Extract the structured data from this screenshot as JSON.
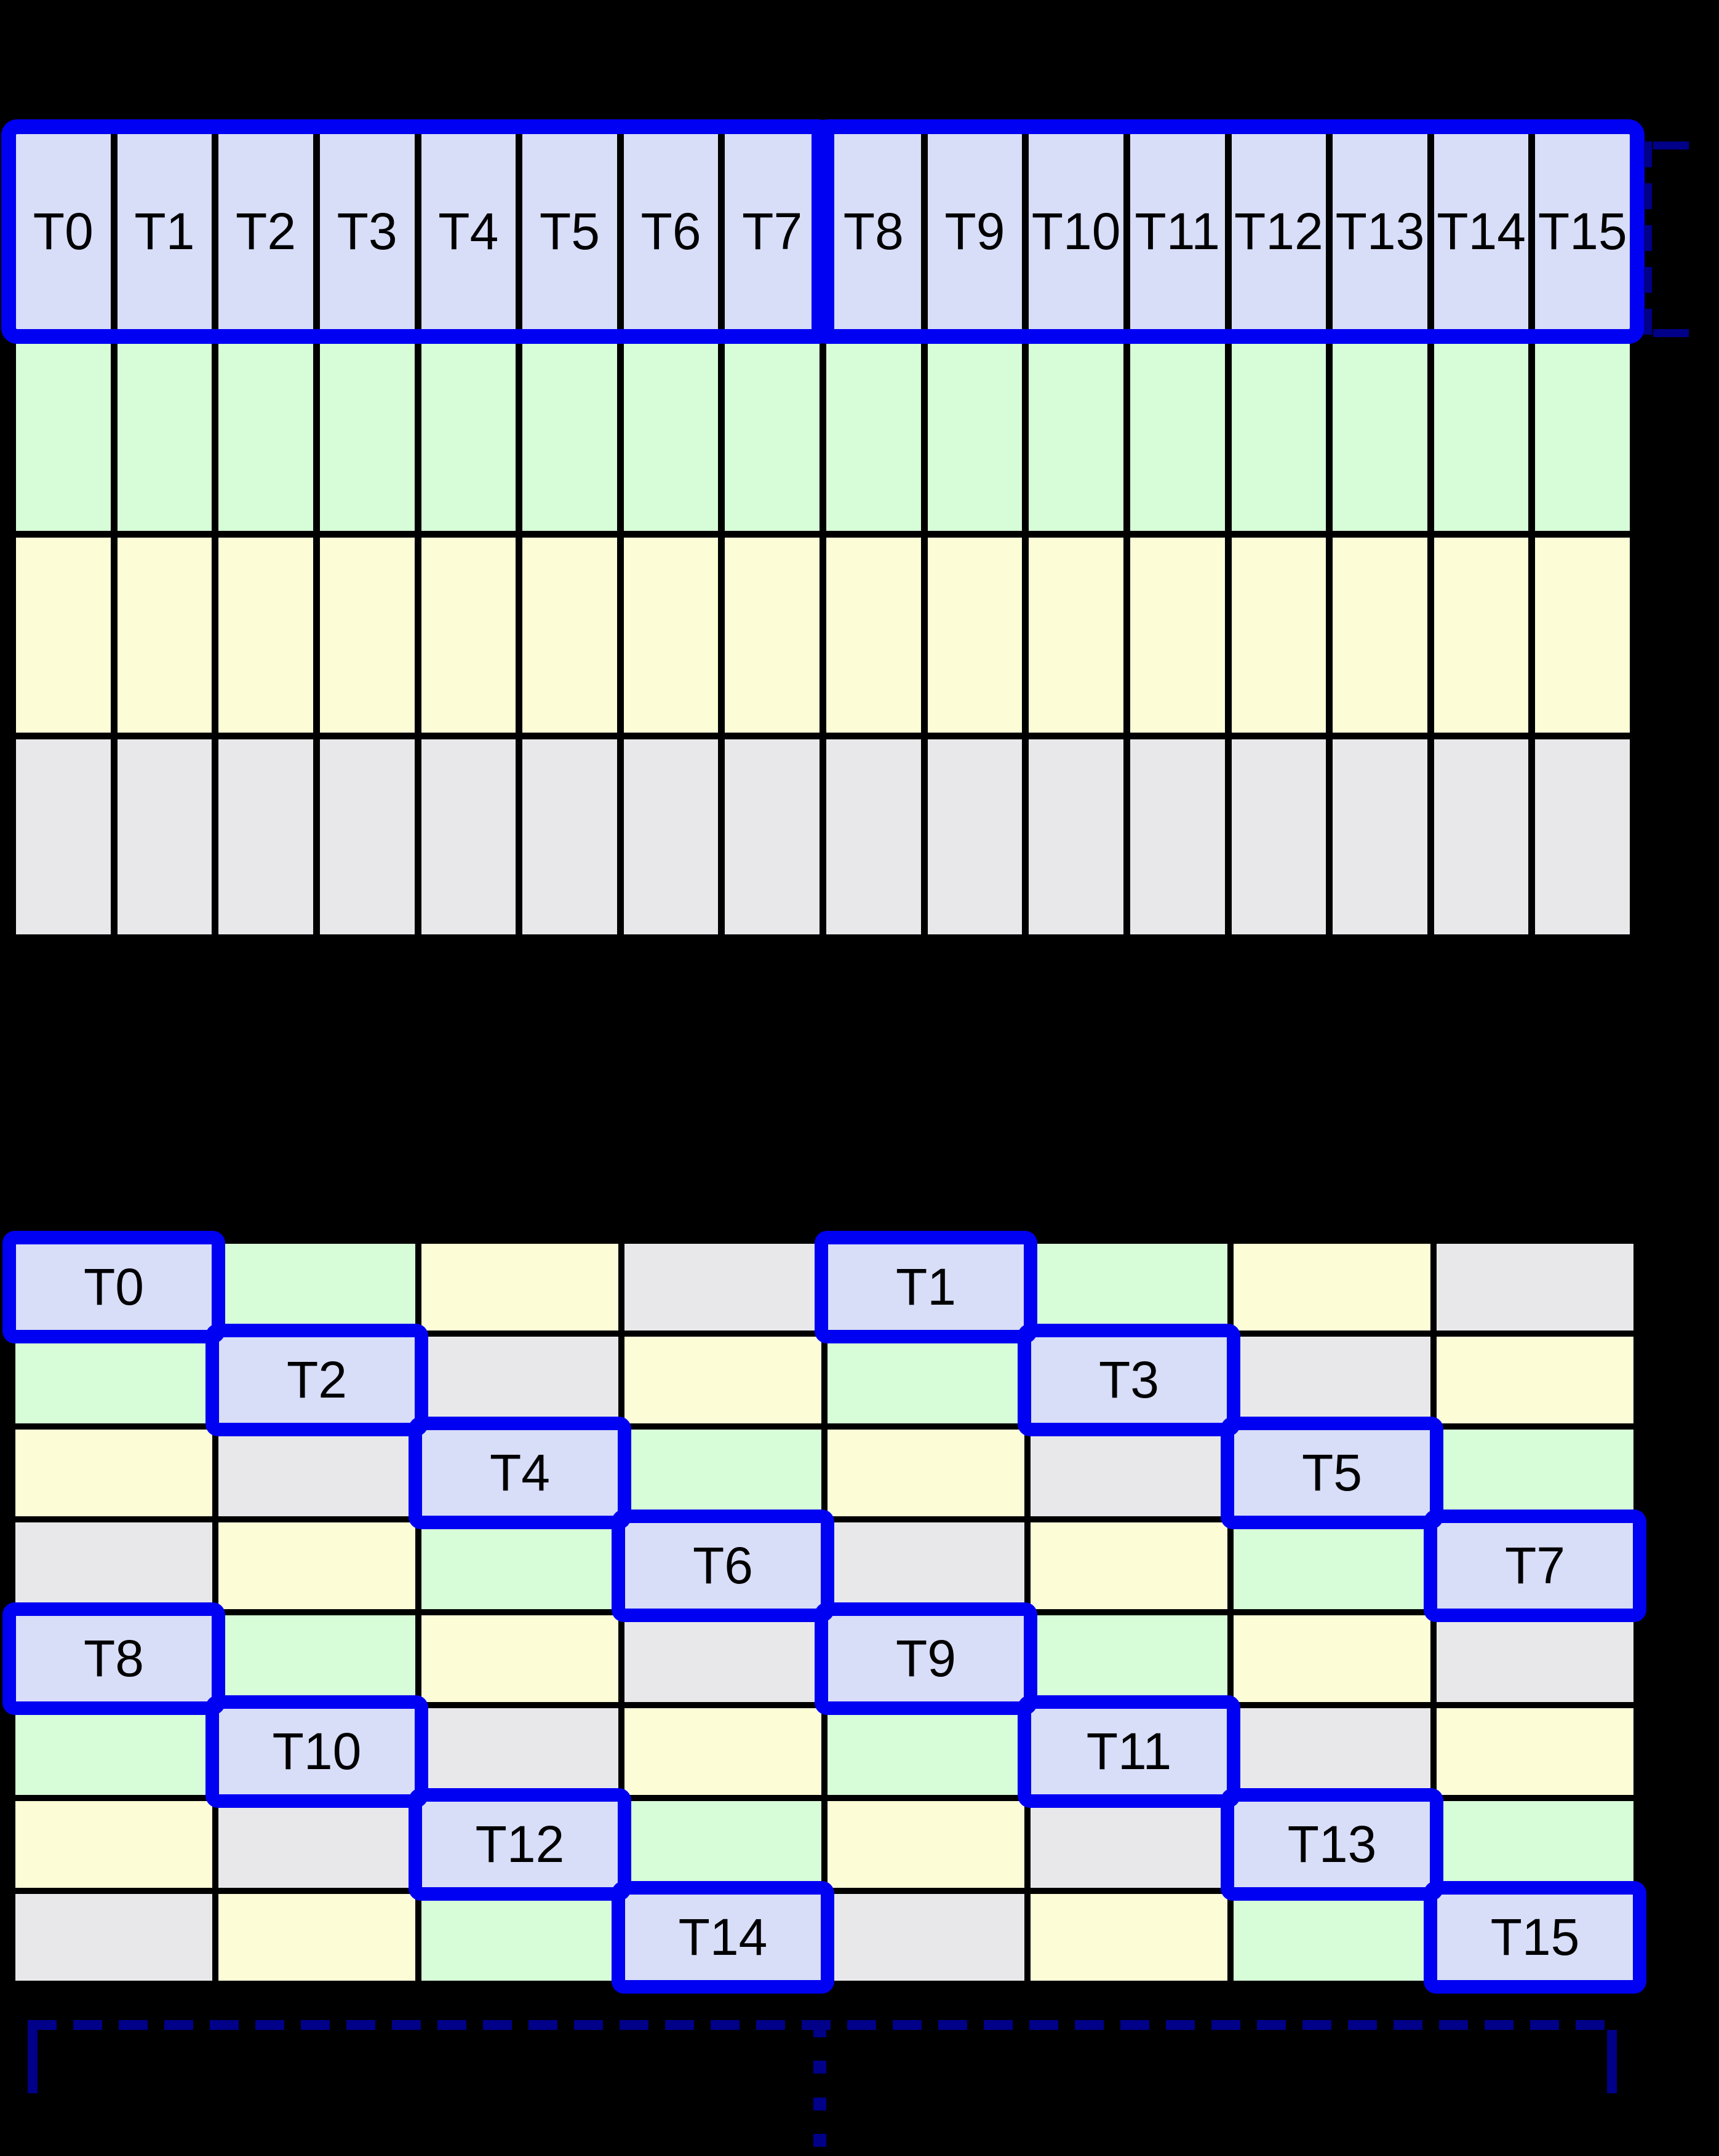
{
  "palette": {
    "thread_cell": "#d8ddf8",
    "green_cell": "#d6fcd8",
    "yellow_cell": "#fcfcd7",
    "gray_cell": "#e8e8ea",
    "highlight_border": "#0000f2",
    "bracket_navy": "#000089",
    "grid_line": "#000000",
    "background": "#000000",
    "label_text": "#000000"
  },
  "grid1": {
    "thread_labels": [
      "T0",
      "T1",
      "T2",
      "T3",
      "T4",
      "T5",
      "T6",
      "T7",
      "T8",
      "T9",
      "T10",
      "T11",
      "T12",
      "T13",
      "T14",
      "T15"
    ],
    "body_row_colors": [
      "green",
      "yellow",
      "gray"
    ],
    "highlight_groups": [
      {
        "from": 0,
        "to": 7
      },
      {
        "from": 8,
        "to": 15
      }
    ]
  },
  "grid2": {
    "rows": [
      [
        "T0",
        "green",
        "yellow",
        "gray",
        "T1",
        "green",
        "yellow",
        "gray"
      ],
      [
        "green",
        "T2",
        "gray",
        "yellow",
        "green",
        "T3",
        "gray",
        "yellow"
      ],
      [
        "yellow",
        "gray",
        "T4",
        "green",
        "yellow",
        "gray",
        "T5",
        "green"
      ],
      [
        "gray",
        "yellow",
        "green",
        "T6",
        "gray",
        "yellow",
        "green",
        "T7"
      ],
      [
        "T8",
        "green",
        "yellow",
        "gray",
        "T9",
        "green",
        "yellow",
        "gray"
      ],
      [
        "green",
        "T10",
        "gray",
        "yellow",
        "green",
        "T11",
        "gray",
        "yellow"
      ],
      [
        "yellow",
        "gray",
        "T12",
        "green",
        "yellow",
        "gray",
        "T13",
        "green"
      ],
      [
        "gray",
        "yellow",
        "green",
        "T14",
        "gray",
        "yellow",
        "green",
        "T15"
      ]
    ]
  },
  "annotations": {
    "right_bracket_style": "dashed",
    "bottom_bracket_style": "dashed",
    "ellipsis_dot_count": 4
  }
}
